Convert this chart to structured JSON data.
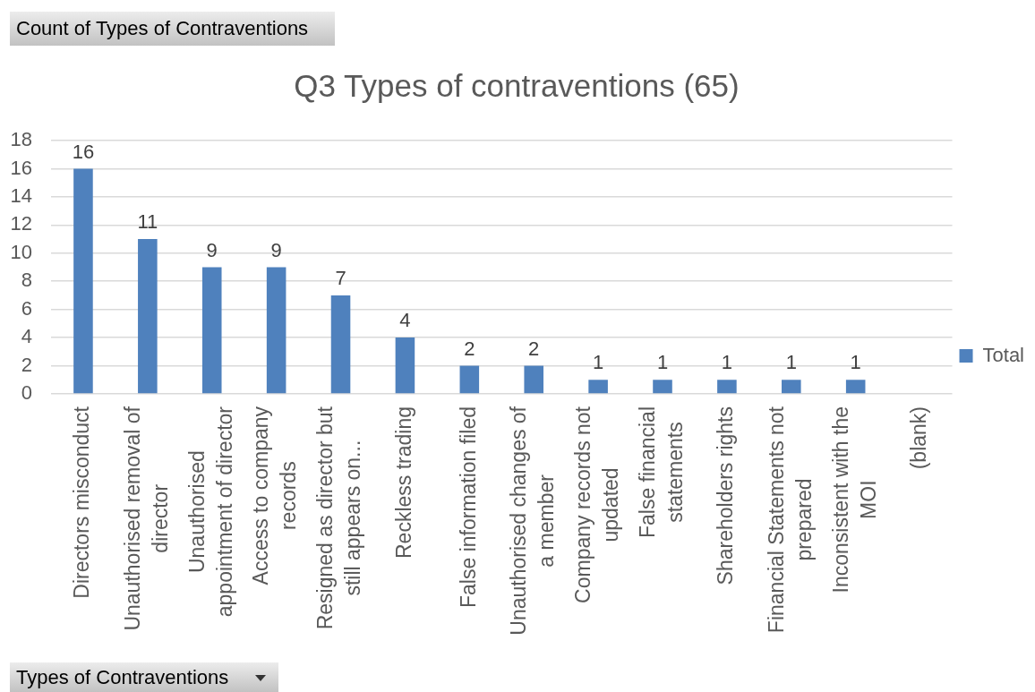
{
  "chart_data": {
    "type": "bar",
    "title": "Q3 Types of contraventions (65)",
    "categories": [
      "Directors misconduct",
      "Unauthorised removal of director",
      "Unauthorised appointment of director",
      "Access to company records",
      "Resigned as director but still appears on...",
      "Reckless trading",
      "False information filed",
      "Unauthorised changes of a member",
      "Company records not updated",
      "False financial statements",
      "Shareholders rights",
      "Financial Statements not prepared",
      "Inconsistent with the MOI",
      "(blank)"
    ],
    "series": [
      {
        "name": "Total",
        "color": "#4f81bd",
        "values": [
          16,
          11,
          9,
          9,
          7,
          4,
          2,
          2,
          1,
          1,
          1,
          1,
          1,
          null
        ]
      }
    ],
    "ylim": [
      0,
      18
    ],
    "yticks": [
      0,
      2,
      4,
      6,
      8,
      10,
      12,
      14,
      16,
      18
    ],
    "grid": "y",
    "legend": "right",
    "data_labels": true,
    "annotations": [
      "Count of Types of Contraventions",
      "Types of Contraventions"
    ]
  }
}
